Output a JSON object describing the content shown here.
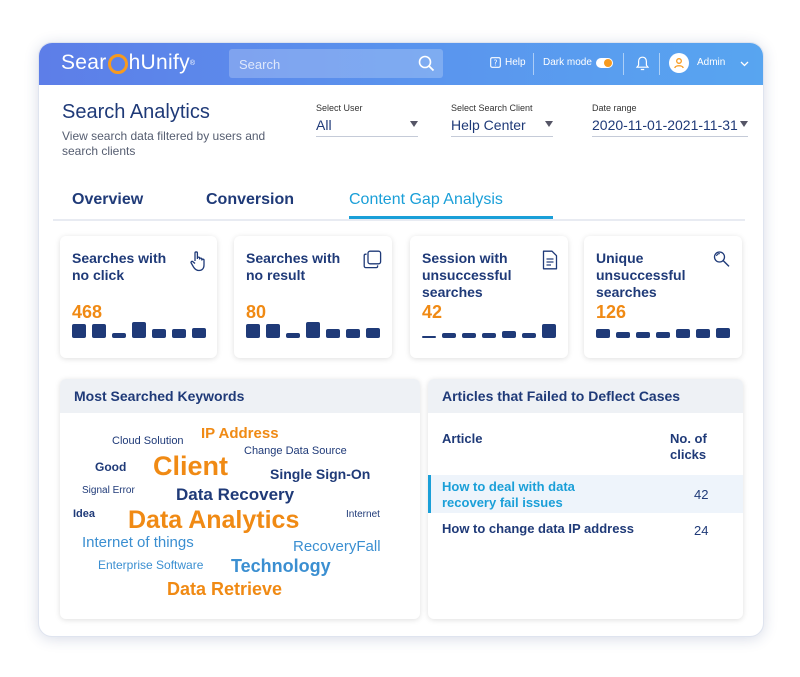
{
  "app": {
    "logo": {
      "part1": "Sear",
      "part2": "hUnify",
      "mark": "®"
    },
    "search_placeholder": "Search",
    "help_label": "Help",
    "dark_mode_label": "Dark mode",
    "user_label": "Admin",
    "accent_color": "#f08a14",
    "primary_color": "#1f3a78",
    "highlight_color": "#1a9fd8"
  },
  "header": {
    "title": "Search Analytics",
    "subtitle": "View search data filtered by users and search clients"
  },
  "filters": [
    {
      "label": "Select User",
      "value": "All"
    },
    {
      "label": "Select Search Client",
      "value": "Help Center"
    },
    {
      "label": "Date range",
      "value": "2020-11-01-2021-11-31"
    }
  ],
  "tabs": [
    {
      "label": "Overview",
      "active": false
    },
    {
      "label": "Conversion",
      "active": false
    },
    {
      "label": "Content Gap Analysis",
      "active": true
    }
  ],
  "cards": [
    {
      "title": "Searches with no click",
      "value": "468",
      "icon": "hand-pointer-icon",
      "bar_levels": [
        0.85,
        0.85,
        0.3,
        1.0,
        0.55,
        0.55,
        0.65
      ]
    },
    {
      "title": "Searches with no result",
      "value": "80",
      "icon": "copy-icon",
      "bar_levels": [
        0.85,
        0.85,
        0.3,
        1.0,
        0.55,
        0.55,
        0.65
      ]
    },
    {
      "title": "Session with unsuccessful searches",
      "value": "42",
      "icon": "document-icon",
      "bar_levels": [
        0.15,
        0.3,
        0.3,
        0.3,
        0.45,
        0.3,
        0.9
      ]
    },
    {
      "title": "Unique unsuccessful searches",
      "value": "126",
      "icon": "search-icon",
      "bar_levels": [
        0.55,
        0.4,
        0.4,
        0.4,
        0.55,
        0.55,
        0.65
      ]
    }
  ],
  "keywords_panel": {
    "title": "Most Searched Keywords",
    "words": [
      {
        "text": "Cloud Solution",
        "color": "#1f3a78"
      },
      {
        "text": "IP Address",
        "color": "#f08a14"
      },
      {
        "text": "Change Data Source",
        "color": "#1f3a78"
      },
      {
        "text": "Good",
        "color": "#1f3a78"
      },
      {
        "text": "Client",
        "color": "#f08a14"
      },
      {
        "text": "Single Sign-On",
        "color": "#1f3a78"
      },
      {
        "text": "Signal Error",
        "color": "#1f3a78"
      },
      {
        "text": "Data Recovery",
        "color": "#1f3a78"
      },
      {
        "text": "Idea",
        "color": "#1f3a78"
      },
      {
        "text": "Data Analytics",
        "color": "#f08a14"
      },
      {
        "text": "Internet",
        "color": "#1f3a78"
      },
      {
        "text": "Internet of things",
        "color": "#3b8fd1"
      },
      {
        "text": "RecoveryFall",
        "color": "#3b8fd1"
      },
      {
        "text": "Enterprise Software",
        "color": "#3b8fd1"
      },
      {
        "text": "Technology",
        "color": "#3b8fd1"
      },
      {
        "text": "Data Retrieve",
        "color": "#f08a14"
      }
    ]
  },
  "articles_panel": {
    "title": "Articles that Failed to Deflect Cases",
    "col_article": "Article",
    "col_clicks": "No. of clicks",
    "rows": [
      {
        "article": "How to deal with data recovery fail issues",
        "clicks": "42",
        "highlighted": true
      },
      {
        "article": "How to change data IP address",
        "clicks": "24",
        "highlighted": false
      }
    ]
  }
}
